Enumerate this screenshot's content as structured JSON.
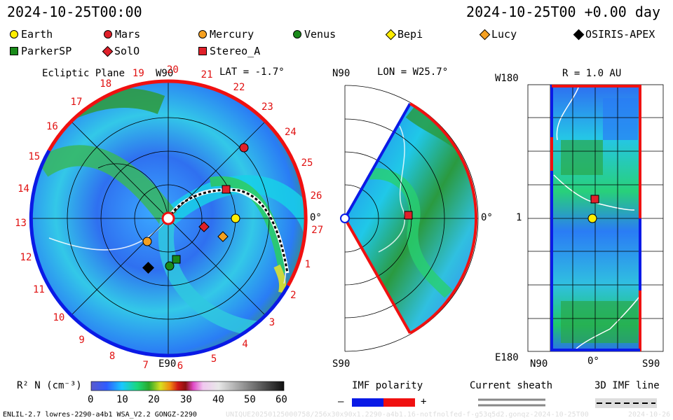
{
  "header": {
    "timestamp": "2024-10-25T00:00",
    "offset": "2024-10-25T00 +0.00 day"
  },
  "legend": [
    {
      "name": "Earth",
      "color": "#ffee00",
      "shape": "circle"
    },
    {
      "name": "Mars",
      "color": "#e0202a",
      "shape": "circle"
    },
    {
      "name": "Mercury",
      "color": "#f5a020",
      "shape": "circle"
    },
    {
      "name": "Venus",
      "color": "#1a8a1a",
      "shape": "circle"
    },
    {
      "name": "Bepi",
      "color": "#ffee00",
      "shape": "diamond"
    },
    {
      "name": "Lucy",
      "color": "#f5a020",
      "shape": "diamond"
    },
    {
      "name": "OSIRIS-APEX",
      "color": "#000000",
      "shape": "diamond"
    },
    {
      "name": "ParkerSP",
      "color": "#1a8a1a",
      "shape": "square"
    },
    {
      "name": "SolO",
      "color": "#e0202a",
      "shape": "diamond"
    },
    {
      "name": "Stereo_A",
      "color": "#e0202a",
      "shape": "square"
    }
  ],
  "ecliptic": {
    "title": "Ecliptic Plane",
    "top_label": "W90",
    "bottom_label": "E90",
    "lat_label": "LAT = -1.7°",
    "zero_label": "0°",
    "rotation_numbers": [
      "19",
      "20",
      "21",
      "22",
      "23",
      "24",
      "25",
      "26",
      "27",
      "1",
      "2",
      "3",
      "4",
      "5",
      "6",
      "7",
      "8",
      "9",
      "10",
      "11",
      "12",
      "13",
      "14",
      "15",
      "16",
      "17",
      "18"
    ]
  },
  "meridional": {
    "top_label": "N90",
    "bottom_label": "S90",
    "lon_label": "LON = W25.7°",
    "zero_label": "0°"
  },
  "radial": {
    "title": "R = 1.0 AU",
    "top_left": "W180",
    "bottom_left": "E180",
    "mid_left": "1",
    "bottom_n": "N90",
    "bottom_zero": "0°",
    "bottom_s": "S90"
  },
  "colorbar": {
    "label": "R² N (cm⁻³)",
    "ticks": [
      "0",
      "10",
      "20",
      "30",
      "40",
      "50",
      "60"
    ],
    "min": 0,
    "max": 60
  },
  "imf": {
    "title": "IMF polarity",
    "minus": "–",
    "plus": "+",
    "colors": {
      "negative": "#0a1ae6",
      "positive": "#f01010"
    }
  },
  "sheath": {
    "title": "Current sheath"
  },
  "imfline": {
    "title": "3D IMF line"
  },
  "footer": {
    "model": "ENLIL-2.7 lowres-2290-a4b1 WSA_V2.2 GONGZ-2290",
    "run": "UNIQUE20250125000758/256x30x90x1.2290-a4b1.16-notfnolfed-f-g53q5d2.gonqz-2024-10-25T00",
    "date": "2024-10-26"
  }
}
